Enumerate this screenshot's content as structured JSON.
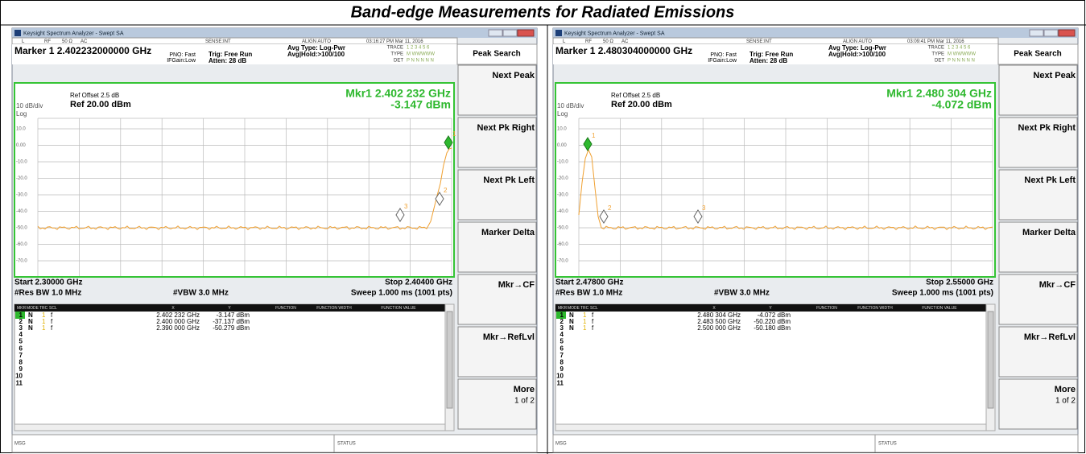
{
  "title": "Band-edge Measurements for Radiated Emissions",
  "window_title": "Keysight Spectrum Analyzer - Swept SA",
  "softkeys": [
    "Peak Search",
    "Next Peak",
    "Next Pk Right",
    "Next Pk Left",
    "Marker Delta",
    "Mkr→CF",
    "Mkr→RefLvl",
    "More"
  ],
  "softkey_sub": "1 of 2",
  "y_labels": [
    "10.0",
    "0.00",
    "-10.0",
    "-20.0",
    "-30.0",
    "-40.0",
    "-50.0",
    "-60.0",
    "-70.0"
  ],
  "table_header": [
    "MKR",
    "MODE",
    "TRC",
    "SCL",
    "X",
    "Y",
    "FUNCTION",
    "FUNCTION WIDTH",
    "FUNCTION VALUE"
  ],
  "footer": [
    "MSG",
    "STATUS"
  ],
  "panels": [
    {
      "status": [
        "L",
        "RF",
        "50 Ω",
        "AC",
        "SENSE:INT",
        "ALIGN AUTO",
        "03:16:27 PM Mar 11, 2016"
      ],
      "marker": "Marker 1 2.402232000000 GHz",
      "settings": [
        "PNO: Fast",
        "IFGain:Low",
        "Trig: Free Run",
        "Atten: 28 dB",
        "Avg Type: Log-Pwr",
        "Avg|Hold:>100/100"
      ],
      "trace_info": [
        "TRACE",
        "1 2 3 4 5 6",
        "TYPE",
        "M WWWWW",
        "DET",
        "P N N N N N"
      ],
      "ref_offset": "Ref Offset 2.5 dB",
      "scale": "10 dB/div",
      "ref": "Ref 20.00 dBm",
      "log": "Log",
      "mkr_freq": "Mkr1 2.402 232 GHz",
      "mkr_level": "-3.147 dBm",
      "start": "Start 2.30000 GHz",
      "stop": "Stop 2.40400 GHz",
      "res_bw": "#Res BW 1.0 MHz",
      "vbw": "#VBW 3.0 MHz",
      "sweep": "Sweep  1.000 ms (1001 pts)",
      "marker_labels": [
        "1",
        "2",
        "3"
      ],
      "rows": [
        [
          "1",
          "N",
          "1",
          "f",
          "2.402 232 GHz",
          "-3.147 dBm"
        ],
        [
          "2",
          "N",
          "1",
          "f",
          "2.400 000 GHz",
          "-37.137 dBm"
        ],
        [
          "3",
          "N",
          "1",
          "f",
          "2.390 000 GHz",
          "-50.279 dBm"
        ]
      ],
      "empty_rows": [
        "4",
        "5",
        "6",
        "7",
        "8",
        "9",
        "10",
        "11"
      ]
    },
    {
      "status": [
        "L",
        "RF",
        "50 Ω",
        "AC",
        "SENSE:INT",
        "ALIGN AUTO",
        "03:09:41 PM Mar 11, 2016"
      ],
      "marker": "Marker 1 2.480304000000 GHz",
      "settings": [
        "PNO: Fast",
        "IFGain:Low",
        "Trig: Free Run",
        "Atten: 28 dB",
        "Avg Type: Log-Pwr",
        "Avg|Hold:>100/100"
      ],
      "trace_info": [
        "TRACE",
        "1 2 3 4 5 6",
        "TYPE",
        "M WWWWW",
        "DET",
        "P N N N N N"
      ],
      "ref_offset": "Ref Offset 2.5 dB",
      "scale": "10 dB/div",
      "ref": "Ref 20.00 dBm",
      "log": "Log",
      "mkr_freq": "Mkr1 2.480 304 GHz",
      "mkr_level": "-4.072 dBm",
      "start": "Start 2.47800 GHz",
      "stop": "Stop 2.55000 GHz",
      "res_bw": "#Res BW 1.0 MHz",
      "vbw": "#VBW 3.0 MHz",
      "sweep": "Sweep  1.000 ms (1001 pts)",
      "marker_labels": [
        "1",
        "2",
        "3"
      ],
      "rows": [
        [
          "1",
          "N",
          "1",
          "f",
          "2.480 304 GHz",
          "-4.072 dBm"
        ],
        [
          "2",
          "N",
          "1",
          "f",
          "2.483 500 GHz",
          "-50.220 dBm"
        ],
        [
          "3",
          "N",
          "1",
          "f",
          "2.500 000 GHz",
          "-50.180 dBm"
        ]
      ],
      "empty_rows": [
        "4",
        "5",
        "6",
        "7",
        "8",
        "9",
        "10",
        "11"
      ]
    }
  ]
}
